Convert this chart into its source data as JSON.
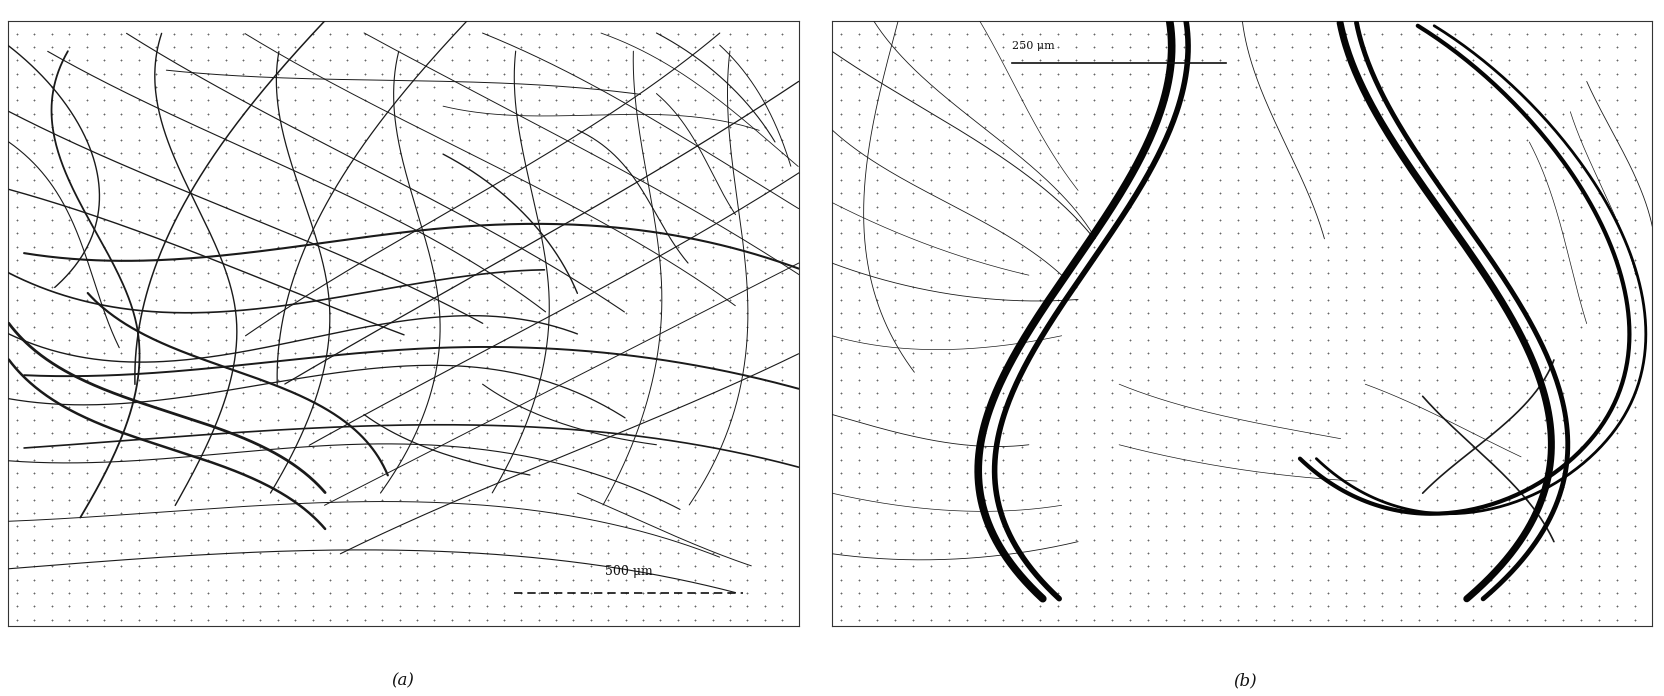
{
  "fig_width": 16.64,
  "fig_height": 6.96,
  "dpi": 100,
  "bg_color": "#ffffff",
  "label_a": "(a)",
  "label_b": "(b)",
  "scalebar_a_text": "500 μm",
  "scalebar_b_text": "250 μm",
  "dot_color": "#555555",
  "fibre_thin_color": "#1a1a1a",
  "fibre_thick_color": "#050505",
  "border_color": "#333333"
}
